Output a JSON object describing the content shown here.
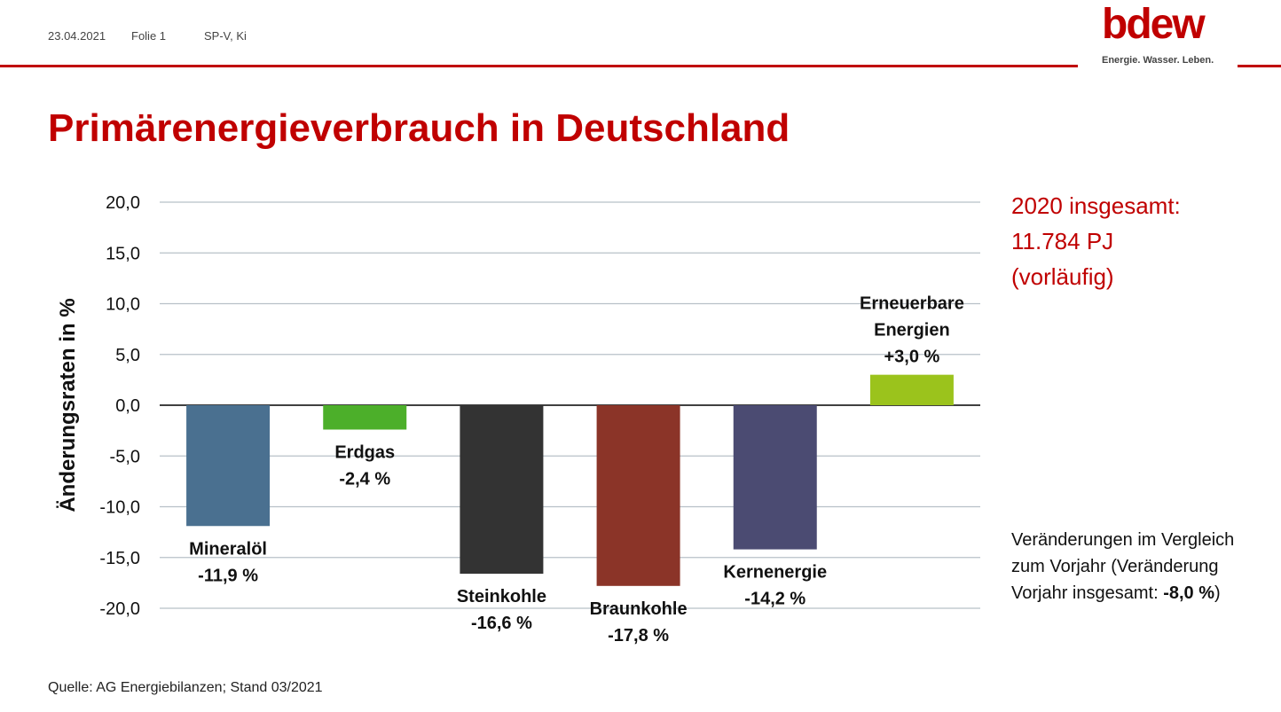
{
  "header": {
    "date": "23.04.2021",
    "slide": "Folie 1",
    "author": "SP-V, Ki"
  },
  "logo": {
    "word": "bdew",
    "tagline": "Energie. Wasser. Leben."
  },
  "title": "Primärenergieverbrauch in Deutschland",
  "total": {
    "line1": "2020 insgesamt:",
    "line2": "11.784 PJ",
    "line3": "(vorläufig)"
  },
  "note": {
    "line1": "Veränderungen im Vergleich",
    "line2": "zum Vorjahr (Veränderung",
    "line3_prefix": "Vorjahr insgesamt: ",
    "line3_value": "-8,0 %",
    "line3_suffix": ")"
  },
  "source": "Quelle: AG Energiebilanzen; Stand 03/2021",
  "colors": {
    "accent": "#c00000"
  },
  "chart_data": {
    "type": "bar",
    "ylabel": "Änderungsraten in %",
    "ylim": [
      -20,
      20
    ],
    "yticks": [
      "20,0",
      "15,0",
      "10,0",
      "5,0",
      "0,0",
      "-5,0",
      "-10,0",
      "-15,0",
      "-20,0"
    ],
    "grid": true,
    "categories": [
      "Mineralöl",
      "Erdgas",
      "Steinkohle",
      "Braunkohle",
      "Kernenergie",
      "Erneuerbare Energien"
    ],
    "values": [
      -11.9,
      -2.4,
      -16.6,
      -17.8,
      -14.2,
      3.0
    ],
    "labels": [
      {
        "lines": [
          "Mineralöl",
          "-11,9 %"
        ]
      },
      {
        "lines": [
          "Erdgas",
          "-2,4 %"
        ]
      },
      {
        "lines": [
          "Steinkohle",
          "-16,6 %"
        ]
      },
      {
        "lines": [
          "Braunkohle",
          "-17,8 %"
        ]
      },
      {
        "lines": [
          "Kernenergie",
          "-14,2 %"
        ]
      },
      {
        "lines": [
          "Erneuerbare",
          "Energien",
          "+3,0 %"
        ]
      }
    ],
    "bar_colors": [
      "#4a7090",
      "#4caf2a",
      "#333333",
      "#8b3428",
      "#4b4b72",
      "#9bc31c"
    ]
  }
}
